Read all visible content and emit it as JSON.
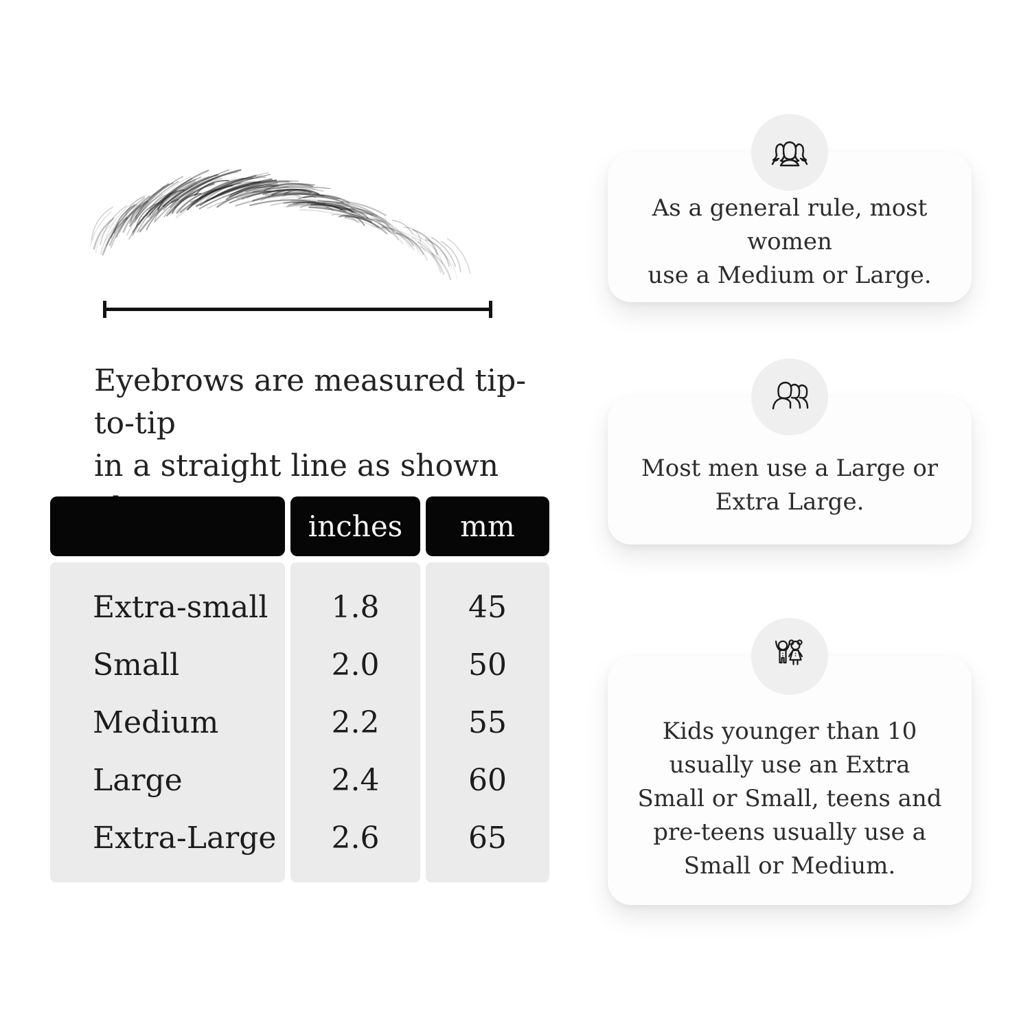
{
  "illustration": {
    "subject": "eyebrow sketch with tip-to-tip measuring line"
  },
  "caption": {
    "lines": [
      "Eyebrows are measured tip-to-tip",
      "in a straight line as shown above."
    ]
  },
  "table": {
    "header_bg": "#060606",
    "body_bg": "#ebebeb",
    "headers": [
      "",
      "inches",
      "mm"
    ],
    "rows": [
      {
        "label": "Extra-small",
        "inches": "1.8",
        "mm": "45"
      },
      {
        "label": "Small",
        "inches": "2.0",
        "mm": "50"
      },
      {
        "label": "Medium",
        "inches": "2.2",
        "mm": "55"
      },
      {
        "label": "Large",
        "inches": "2.4",
        "mm": "60"
      },
      {
        "label": "Extra-Large",
        "inches": "2.6",
        "mm": "65"
      }
    ]
  },
  "cards": [
    {
      "icon": "women-group-icon",
      "lines": [
        "As a general rule, most women",
        "use a Medium or Large."
      ]
    },
    {
      "icon": "men-group-icon",
      "lines": [
        "Most men use a Large or",
        "Extra Large."
      ]
    },
    {
      "icon": "kids-icon",
      "lines": [
        "Kids younger than 10",
        "usually use an Extra",
        "Small or Small, teens and",
        "pre-teens usually use a",
        "Small or Medium."
      ]
    }
  ],
  "colors": {
    "background": "#ffffff",
    "card_bg": "#fdfdfd",
    "icon_circle_bg": "#efefef",
    "table_header_bg": "#060606",
    "table_body_bg": "#ebebeb",
    "ink": "#1e1e1e"
  }
}
